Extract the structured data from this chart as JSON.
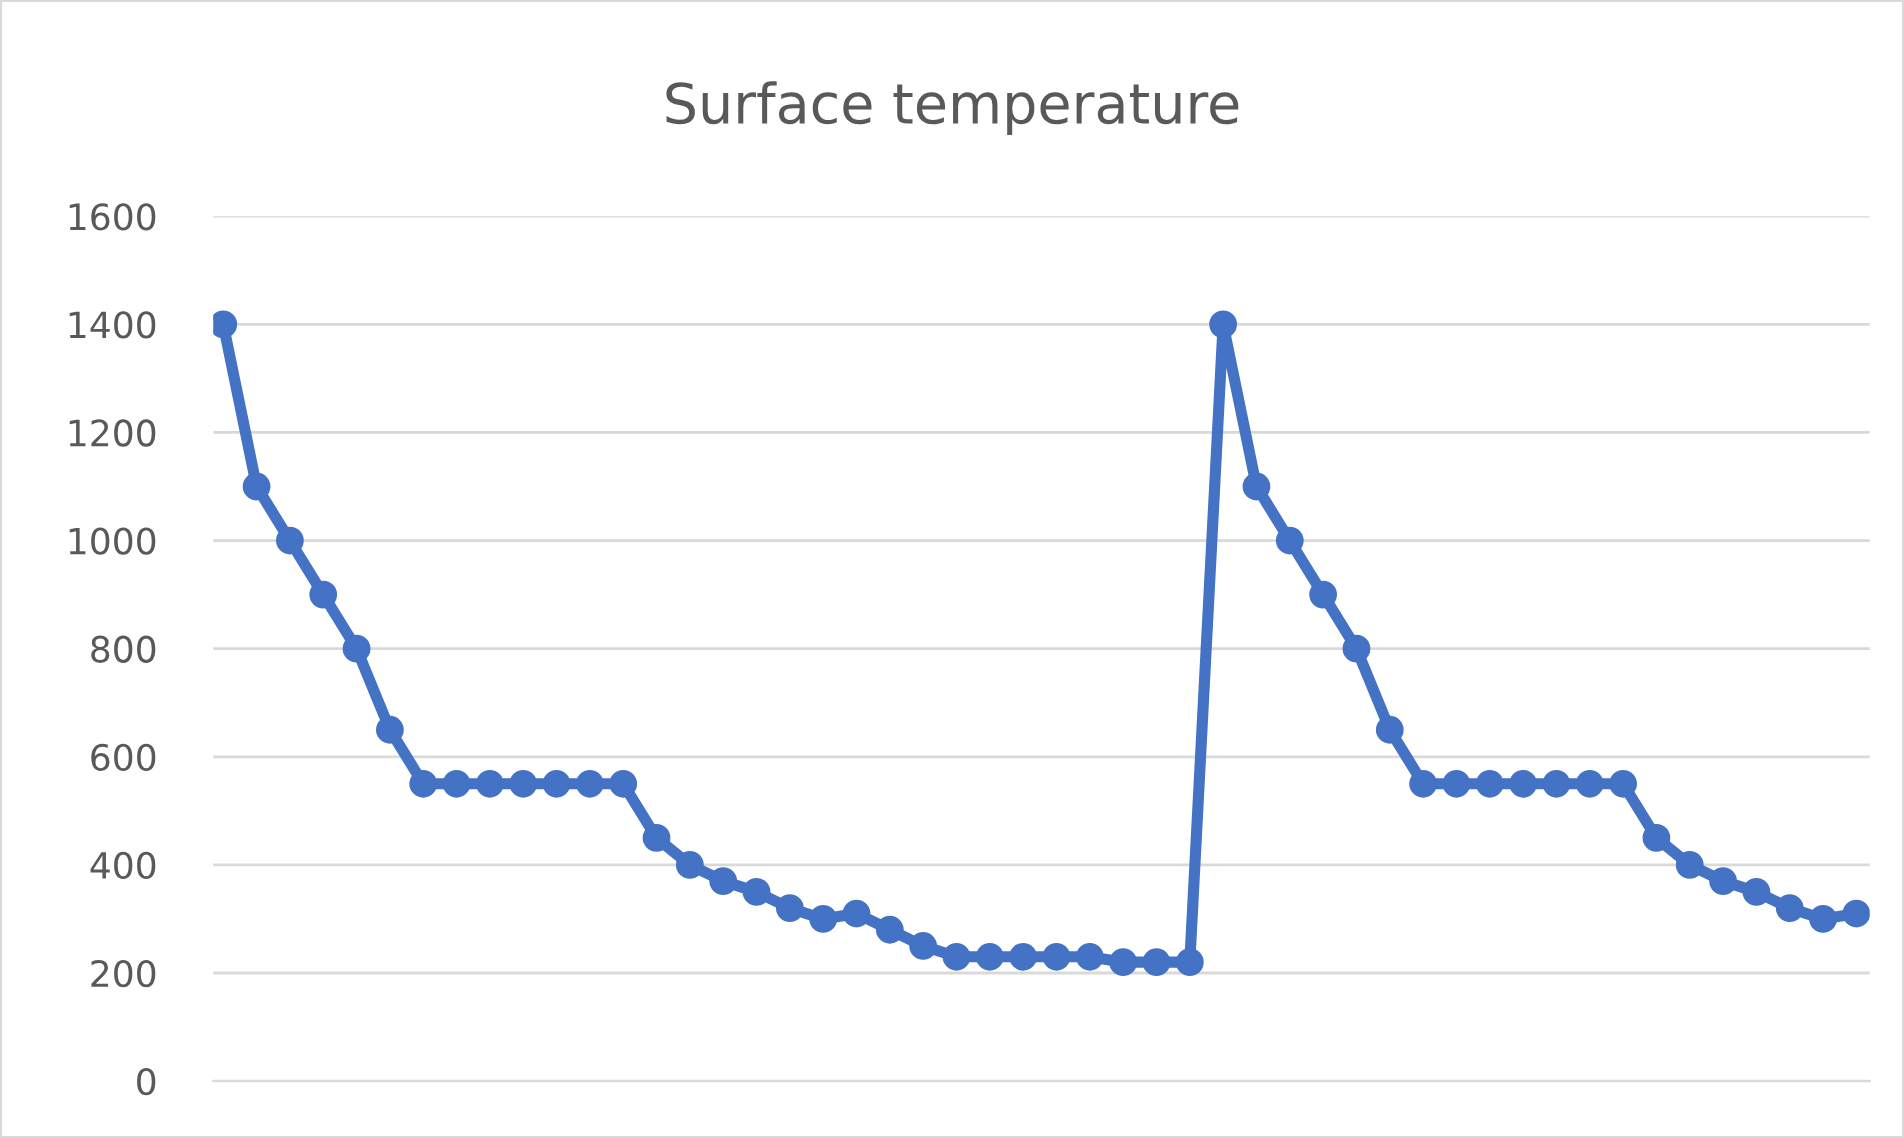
{
  "chart_data": {
    "type": "line",
    "title": "Surface temperature",
    "categories": [
      null,
      null,
      null,
      null,
      null,
      null,
      null,
      null,
      null,
      null,
      null,
      null,
      null,
      null,
      null,
      null,
      null,
      null,
      null,
      null,
      null,
      null,
      null,
      null,
      null,
      null,
      null,
      null,
      null,
      null,
      null,
      null,
      null,
      null,
      null,
      null,
      null,
      null,
      null,
      null,
      null,
      null,
      null,
      null,
      null,
      null,
      null,
      null,
      null,
      null
    ],
    "series": [
      {
        "color": "#4472c4",
        "values": [
          1400,
          1100,
          1000,
          900,
          800,
          650,
          550,
          550,
          550,
          550,
          550,
          550,
          550,
          450,
          400,
          370,
          350,
          320,
          300,
          310,
          280,
          250,
          230,
          230,
          230,
          230,
          230,
          220,
          220,
          220,
          1400,
          1100,
          1000,
          900,
          800,
          650,
          550,
          550,
          550,
          550,
          550,
          550,
          550,
          450,
          400,
          370,
          350,
          320,
          300,
          310
        ]
      }
    ],
    "ylim": [
      0,
      1600
    ],
    "yticks": [
      0,
      200,
      400,
      600,
      800,
      1000,
      1200,
      1400,
      1600
    ],
    "grid": "y",
    "marker": "circle",
    "line_style": "solid",
    "tick_labels": "y"
  }
}
